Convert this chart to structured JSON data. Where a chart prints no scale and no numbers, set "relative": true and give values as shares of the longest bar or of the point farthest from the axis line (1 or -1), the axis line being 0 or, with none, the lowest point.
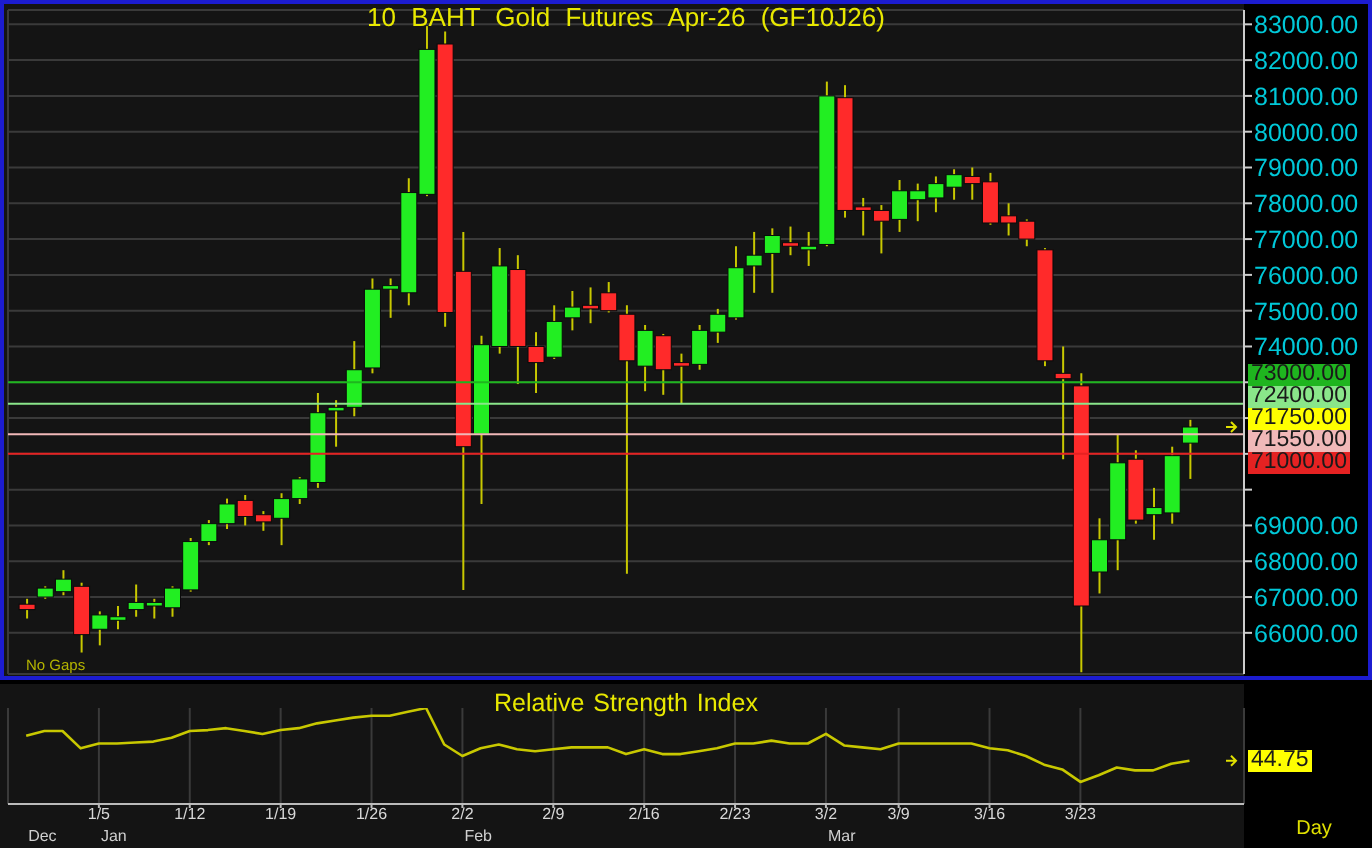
{
  "chart_data": [
    {
      "type": "candlestick",
      "title": "10 BAHT Gold Futures Apr-26 (GF10J26)",
      "categories": [
        null,
        null,
        null,
        null,
        null,
        null,
        null,
        null,
        null,
        null,
        null,
        null,
        null,
        null,
        null,
        null,
        null,
        null,
        null,
        null,
        null,
        null,
        null,
        null,
        null,
        null,
        null,
        null,
        null,
        null,
        null,
        null,
        null,
        null,
        null,
        null,
        null,
        null,
        null,
        null,
        null,
        null,
        null,
        null,
        null,
        null,
        null,
        null,
        null,
        null,
        null,
        null,
        null,
        null,
        null,
        null,
        null,
        null,
        null,
        null,
        null,
        null,
        null,
        null,
        null
      ],
      "ohlc": [
        [
          66800,
          66950,
          66400,
          66650
        ],
        [
          67000,
          67300,
          66950,
          67250
        ],
        [
          67150,
          67750,
          67050,
          67500
        ],
        [
          67300,
          67400,
          65450,
          65950
        ],
        [
          66100,
          66600,
          65650,
          66500
        ],
        [
          66350,
          66750,
          66100,
          66450
        ],
        [
          66650,
          67350,
          66450,
          66850
        ],
        [
          66750,
          66950,
          66400,
          66850
        ],
        [
          66700,
          67300,
          66450,
          67250
        ],
        [
          67200,
          68650,
          67150,
          68550
        ],
        [
          68550,
          69150,
          68450,
          69050
        ],
        [
          69050,
          69750,
          68900,
          69600
        ],
        [
          69700,
          69850,
          69000,
          69250
        ],
        [
          69300,
          69400,
          68850,
          69100
        ],
        [
          69200,
          69900,
          68450,
          69750
        ],
        [
          69750,
          70350,
          69600,
          70300
        ],
        [
          70200,
          72700,
          70050,
          72150
        ],
        [
          72200,
          72500,
          71200,
          72300
        ],
        [
          72300,
          74150,
          72050,
          73350
        ],
        [
          73400,
          75900,
          73250,
          75600
        ],
        [
          75600,
          75900,
          74800,
          75700
        ],
        [
          75500,
          78700,
          75150,
          78300
        ],
        [
          78250,
          82950,
          78200,
          82300
        ],
        [
          82450,
          82800,
          74550,
          74950
        ],
        [
          76100,
          77200,
          67200,
          71200
        ],
        [
          71550,
          74300,
          69600,
          74050
        ],
        [
          74000,
          76750,
          73800,
          76250
        ],
        [
          76150,
          76550,
          72950,
          74000
        ],
        [
          74000,
          74400,
          72700,
          73550
        ],
        [
          73700,
          75150,
          73650,
          74700
        ],
        [
          74800,
          75550,
          74450,
          75100
        ],
        [
          75150,
          75650,
          74650,
          75050
        ],
        [
          75500,
          75800,
          74950,
          75000
        ],
        [
          74900,
          75150,
          67650,
          73600
        ],
        [
          73450,
          74600,
          72750,
          74450
        ],
        [
          74300,
          74350,
          72650,
          73350
        ],
        [
          73550,
          73800,
          72400,
          73450
        ],
        [
          73500,
          74600,
          73350,
          74450
        ],
        [
          74400,
          75050,
          74100,
          74900
        ],
        [
          74800,
          76800,
          74750,
          76200
        ],
        [
          76250,
          77200,
          75500,
          76550
        ],
        [
          76600,
          77300,
          75500,
          77100
        ],
        [
          76900,
          77350,
          76550,
          76800
        ],
        [
          76700,
          77200,
          76250,
          76800
        ],
        [
          76850,
          81400,
          76800,
          81000
        ],
        [
          80950,
          81300,
          77600,
          77800
        ],
        [
          77900,
          78150,
          77100,
          77800
        ],
        [
          77800,
          77950,
          76600,
          77500
        ],
        [
          77550,
          78650,
          77200,
          78350
        ],
        [
          78100,
          78550,
          77500,
          78350
        ],
        [
          78150,
          78750,
          77750,
          78550
        ],
        [
          78450,
          78950,
          78100,
          78800
        ],
        [
          78750,
          79000,
          78100,
          78550
        ],
        [
          78600,
          78850,
          77400,
          77450
        ],
        [
          77650,
          78000,
          77100,
          77450
        ],
        [
          77500,
          77550,
          76800,
          77000
        ],
        [
          76700,
          76750,
          73450,
          73600
        ],
        [
          73250,
          74000,
          70850,
          73100
        ],
        [
          72900,
          73250,
          64900,
          66750
        ],
        [
          67700,
          69200,
          67100,
          68600
        ],
        [
          68600,
          71550,
          67750,
          70750
        ],
        [
          70850,
          71100,
          69050,
          69150
        ],
        [
          69300,
          70050,
          68600,
          69500
        ],
        [
          69350,
          71200,
          69050,
          70950
        ],
        [
          71300,
          71950,
          70300,
          71750
        ]
      ],
      "colors": [
        "#ff2a2a",
        "#22ee22",
        "#22ee22",
        "#ff2a2a",
        "#22ee22",
        "#22ee22",
        "#22ee22",
        "#22ee22",
        "#22ee22",
        "#22ee22",
        "#22ee22",
        "#22ee22",
        "#ff2a2a",
        "#ff2a2a",
        "#22ee22",
        "#22ee22",
        "#22ee22",
        "#22ee22",
        "#22ee22",
        "#22ee22",
        "#22ee22",
        "#22ee22",
        "#22ee22",
        "#ff2a2a",
        "#ff2a2a",
        "#22ee22",
        "#22ee22",
        "#ff2a2a",
        "#ff2a2a",
        "#22ee22",
        "#22ee22",
        "#ff2a2a",
        "#ff2a2a",
        "#ff2a2a",
        "#22ee22",
        "#ff2a2a",
        "#ff2a2a",
        "#22ee22",
        "#22ee22",
        "#22ee22",
        "#22ee22",
        "#22ee22",
        "#ff2a2a",
        "#22ee22",
        "#22ee22",
        "#ff2a2a",
        "#ff2a2a",
        "#ff2a2a",
        "#22ee22",
        "#22ee22",
        "#22ee22",
        "#22ee22",
        "#ff2a2a",
        "#ff2a2a",
        "#ff2a2a",
        "#ff2a2a",
        "#ff2a2a",
        "#ff2a2a",
        "#ff2a2a",
        "#22ee22",
        "#22ee22",
        "#ff2a2a",
        "#22ee22",
        "#22ee22",
        "#22ee22"
      ],
      "ylim": [
        64850,
        83400
      ],
      "yticks": [
        {
          "value": 66000,
          "label": "66000.00"
        },
        {
          "value": 67000,
          "label": "67000.00"
        },
        {
          "value": 68000,
          "label": "68000.00"
        },
        {
          "value": 69000,
          "label": "69000.00"
        },
        {
          "value": 70000,
          "label": null
        },
        {
          "value": 71000,
          "label": null
        },
        {
          "value": 72000,
          "label": null
        },
        {
          "value": 73000,
          "label": null
        },
        {
          "value": 74000,
          "label": "74000.00"
        },
        {
          "value": 75000,
          "label": "75000.00"
        },
        {
          "value": 76000,
          "label": "76000.00"
        },
        {
          "value": 77000,
          "label": "77000.00"
        },
        {
          "value": 78000,
          "label": "78000.00"
        },
        {
          "value": 79000,
          "label": "79000.00"
        },
        {
          "value": 80000,
          "label": "80000.00"
        },
        {
          "value": 81000,
          "label": "81000.00"
        },
        {
          "value": 82000,
          "label": "82000.00"
        },
        {
          "value": 83000,
          "label": "83000.00"
        }
      ],
      "grid": true,
      "tick_labels": "y",
      "ref_lines": [
        {
          "axis": "y",
          "value": 73000,
          "label": "73000.00",
          "color": "#1fb51f"
        },
        {
          "axis": "y",
          "value": 72400,
          "label": "72400.00",
          "color": "#8ae68a"
        },
        {
          "axis": "y",
          "value": 71550,
          "label": "71550.00",
          "color": "#f0b8b8"
        },
        {
          "axis": "y",
          "value": 71000,
          "label": "71000.00",
          "color": "#e52222"
        }
      ],
      "annotations": [
        "71750.00",
        "No Gaps"
      ]
    },
    {
      "type": "line",
      "title": "Relative Strength Index",
      "categories": [
        null,
        null,
        null,
        null,
        "1/5",
        null,
        null,
        null,
        null,
        "1/12",
        null,
        null,
        null,
        null,
        "1/19",
        null,
        null,
        null,
        null,
        "1/26",
        null,
        null,
        null,
        null,
        "2/2",
        null,
        null,
        null,
        null,
        "2/9",
        null,
        null,
        null,
        null,
        "2/16",
        null,
        null,
        null,
        null,
        "2/23",
        null,
        null,
        null,
        null,
        "3/2",
        null,
        null,
        null,
        "3/9",
        null,
        null,
        null,
        null,
        "3/16",
        null,
        null,
        null,
        null,
        "3/23",
        null,
        null,
        null,
        null,
        null,
        null
      ],
      "relative": true,
      "series": [
        {
          "color": "#c8c800",
          "values": [
            0.71,
            0.76,
            0.76,
            0.58,
            0.63,
            0.63,
            0.64,
            0.65,
            0.69,
            0.76,
            0.77,
            0.79,
            0.76,
            0.73,
            0.77,
            0.79,
            0.84,
            0.87,
            0.9,
            0.92,
            0.92,
            0.96,
            1,
            0.62,
            0.5,
            0.58,
            0.62,
            0.57,
            0.55,
            0.57,
            0.59,
            0.59,
            0.59,
            0.52,
            0.57,
            0.52,
            0.52,
            0.55,
            0.58,
            0.63,
            0.63,
            0.66,
            0.63,
            0.63,
            0.73,
            0.61,
            0.59,
            0.57,
            0.63,
            0.63,
            0.63,
            0.63,
            0.63,
            0.58,
            0.56,
            0.5,
            0.41,
            0.36,
            0.23,
            0.3,
            0.38,
            0.35,
            0.35,
            0.42,
            0.45
          ]
        }
      ],
      "grid": "x",
      "tick_labels": "x",
      "annotations": [
        "44.75",
        "Day",
        "Dec",
        "Jan",
        "Feb",
        "Mar"
      ]
    }
  ]
}
